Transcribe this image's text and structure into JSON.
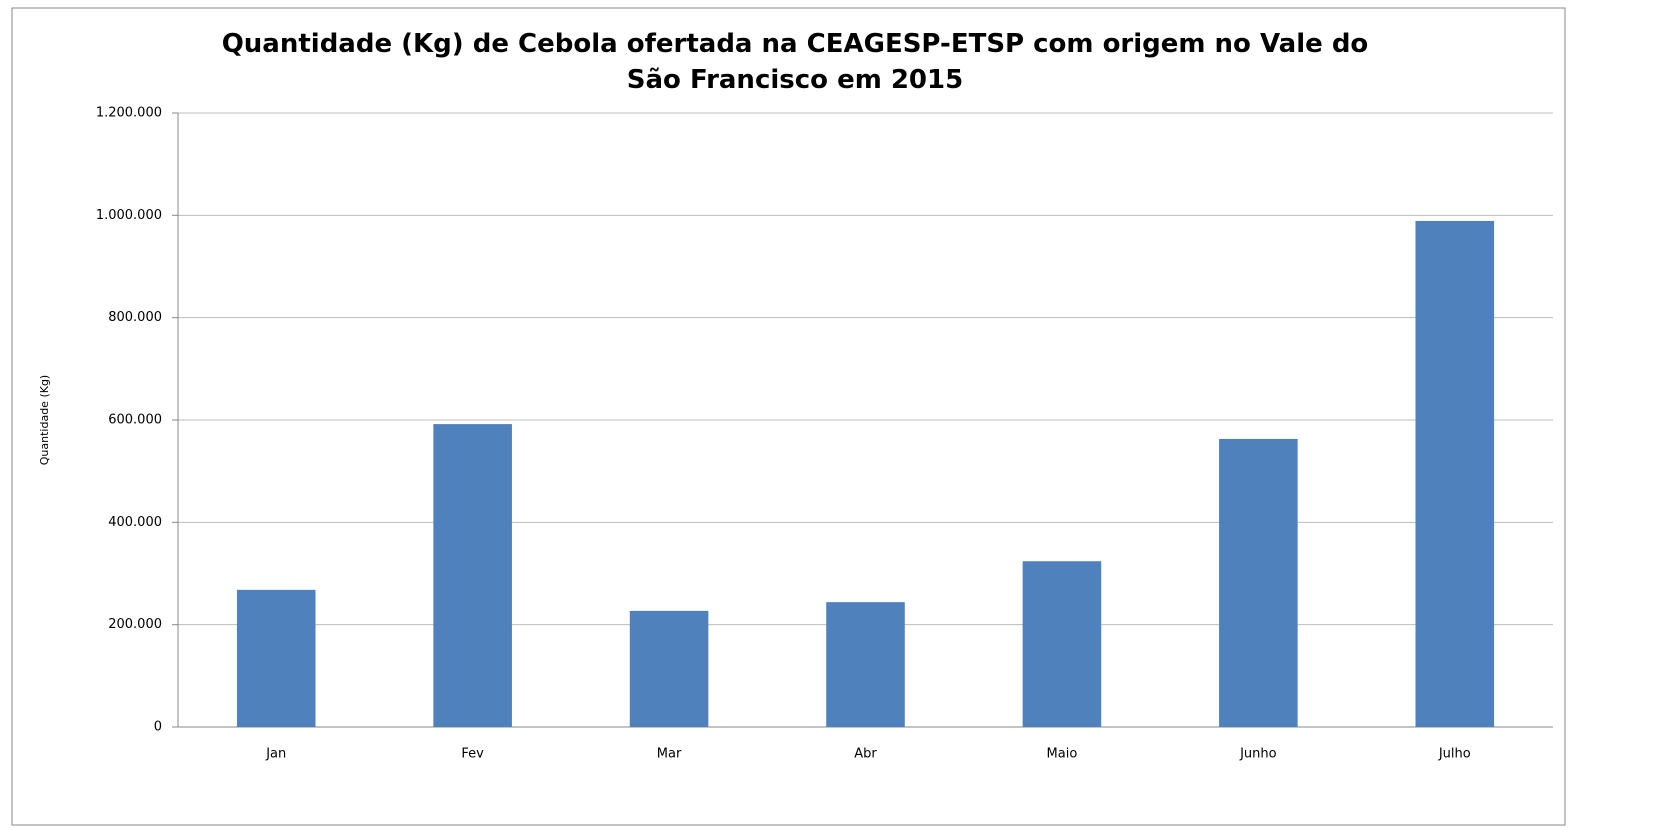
{
  "chart_data": {
    "type": "bar",
    "title": "Quantidade (Kg) de Cebola ofertada na CEAGESP-ETSP com origem no Vale do São Francisco em 2015",
    "y_label": "Quantidade (Kg)",
    "categories": [
      "Jan",
      "Fev",
      "Mar",
      "Abr",
      "Maio",
      "Junho",
      "Julho"
    ],
    "values": [
      268000,
      592000,
      227000,
      244000,
      324000,
      563000,
      989000
    ],
    "color": "#4f81bd",
    "ylim": [
      0,
      1200000
    ],
    "yticks": [
      0,
      {
        "value": 200000,
        "label": "200.000"
      },
      {
        "value": 400000,
        "label": "400.000"
      },
      {
        "value": 600000,
        "label": "600.000"
      },
      {
        "value": 800000,
        "label": "800.000"
      },
      {
        "value": 1000000,
        "label": "1.000.000"
      },
      {
        "value": 1200000,
        "label": "1.200.000"
      }
    ],
    "grid": true
  }
}
